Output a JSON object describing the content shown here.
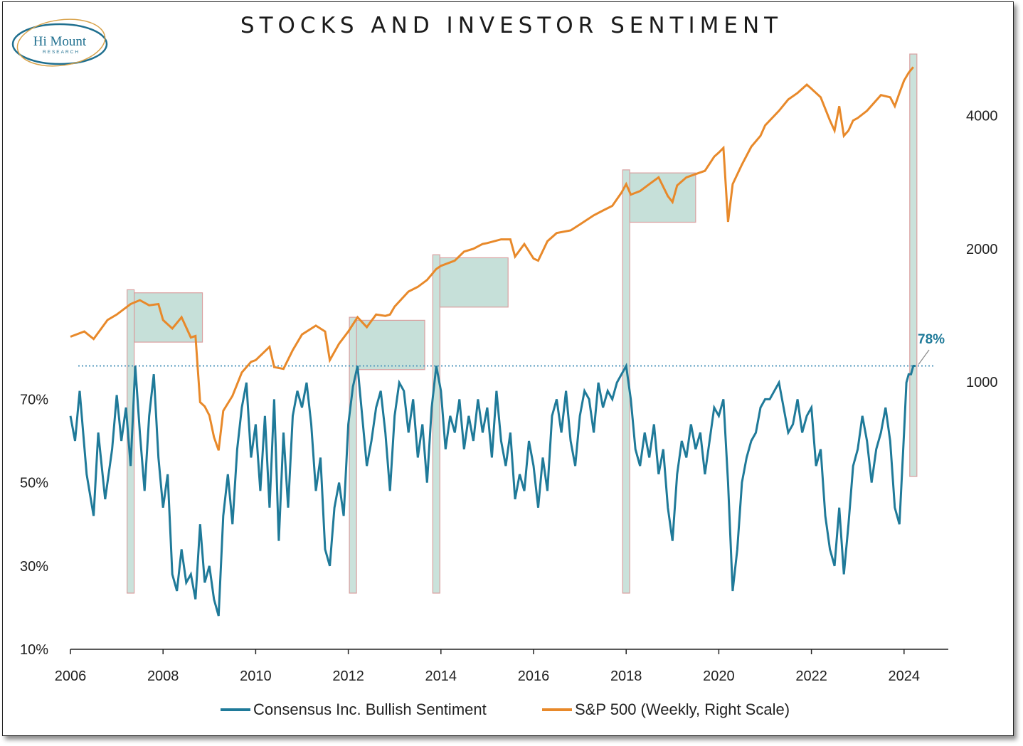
{
  "title": "STOCKS AND INVESTOR SENTIMENT",
  "logo": {
    "line1": "Hi Mount",
    "line2": "RESEARCH"
  },
  "colors": {
    "sentiment": "#1f7a99",
    "spx": "#e8892a",
    "box_fill": "#b3d6cc",
    "box_stroke": "#d9a0a0",
    "ref_line": "#5b9ec0"
  },
  "chart_data": {
    "type": "line",
    "title": "STOCKS AND INVESTOR SENTIMENT",
    "x_ticks": [
      "2006",
      "2008",
      "2010",
      "2012",
      "2014",
      "2016",
      "2018",
      "2020",
      "2022",
      "2024"
    ],
    "xlim": [
      2006,
      2024.9
    ],
    "left_axis": {
      "ticks": [
        "10%",
        "30%",
        "50%",
        "70%"
      ],
      "ylim": [
        10,
        100
      ]
    },
    "right_axis": {
      "ticks": [
        "1000",
        "2000",
        "4000"
      ],
      "scale": "log"
    },
    "reference_line": {
      "value": 78,
      "label": "78%"
    },
    "highlight_periods": [
      2007.3,
      2012.1,
      2013.9,
      2018.0,
      2024.2
    ],
    "series": [
      {
        "name": "Consensus Inc. Bullish Sentiment",
        "axis": "left",
        "points": [
          [
            2006.0,
            66
          ],
          [
            2006.1,
            60
          ],
          [
            2006.2,
            72
          ],
          [
            2006.35,
            52
          ],
          [
            2006.5,
            42
          ],
          [
            2006.6,
            62
          ],
          [
            2006.75,
            46
          ],
          [
            2006.9,
            58
          ],
          [
            2007.0,
            71
          ],
          [
            2007.1,
            60
          ],
          [
            2007.2,
            68
          ],
          [
            2007.3,
            54
          ],
          [
            2007.4,
            78
          ],
          [
            2007.5,
            62
          ],
          [
            2007.6,
            48
          ],
          [
            2007.7,
            66
          ],
          [
            2007.8,
            76
          ],
          [
            2007.9,
            56
          ],
          [
            2008.0,
            44
          ],
          [
            2008.1,
            52
          ],
          [
            2008.2,
            28
          ],
          [
            2008.3,
            24
          ],
          [
            2008.4,
            34
          ],
          [
            2008.5,
            26
          ],
          [
            2008.6,
            28
          ],
          [
            2008.7,
            22
          ],
          [
            2008.8,
            40
          ],
          [
            2008.9,
            26
          ],
          [
            2009.0,
            30
          ],
          [
            2009.1,
            22
          ],
          [
            2009.2,
            18
          ],
          [
            2009.3,
            42
          ],
          [
            2009.4,
            52
          ],
          [
            2009.5,
            40
          ],
          [
            2009.6,
            58
          ],
          [
            2009.7,
            68
          ],
          [
            2009.8,
            74
          ],
          [
            2009.9,
            56
          ],
          [
            2010.0,
            64
          ],
          [
            2010.1,
            48
          ],
          [
            2010.2,
            66
          ],
          [
            2010.3,
            44
          ],
          [
            2010.4,
            70
          ],
          [
            2010.5,
            36
          ],
          [
            2010.6,
            62
          ],
          [
            2010.7,
            44
          ],
          [
            2010.8,
            66
          ],
          [
            2010.9,
            72
          ],
          [
            2011.0,
            68
          ],
          [
            2011.1,
            74
          ],
          [
            2011.2,
            64
          ],
          [
            2011.3,
            48
          ],
          [
            2011.4,
            56
          ],
          [
            2011.5,
            34
          ],
          [
            2011.6,
            30
          ],
          [
            2011.7,
            44
          ],
          [
            2011.8,
            50
          ],
          [
            2011.9,
            42
          ],
          [
            2012.0,
            64
          ],
          [
            2012.1,
            73
          ],
          [
            2012.2,
            78
          ],
          [
            2012.3,
            66
          ],
          [
            2012.4,
            54
          ],
          [
            2012.5,
            60
          ],
          [
            2012.6,
            68
          ],
          [
            2012.7,
            72
          ],
          [
            2012.8,
            62
          ],
          [
            2012.9,
            48
          ],
          [
            2013.0,
            66
          ],
          [
            2013.1,
            74
          ],
          [
            2013.2,
            72
          ],
          [
            2013.3,
            62
          ],
          [
            2013.4,
            70
          ],
          [
            2013.5,
            56
          ],
          [
            2013.6,
            64
          ],
          [
            2013.7,
            50
          ],
          [
            2013.8,
            68
          ],
          [
            2013.9,
            78
          ],
          [
            2014.0,
            72
          ],
          [
            2014.1,
            58
          ],
          [
            2014.2,
            66
          ],
          [
            2014.3,
            62
          ],
          [
            2014.4,
            70
          ],
          [
            2014.5,
            58
          ],
          [
            2014.6,
            66
          ],
          [
            2014.7,
            60
          ],
          [
            2014.8,
            70
          ],
          [
            2014.9,
            62
          ],
          [
            2015.0,
            68
          ],
          [
            2015.1,
            56
          ],
          [
            2015.2,
            72
          ],
          [
            2015.3,
            60
          ],
          [
            2015.4,
            54
          ],
          [
            2015.5,
            62
          ],
          [
            2015.6,
            46
          ],
          [
            2015.7,
            52
          ],
          [
            2015.8,
            48
          ],
          [
            2015.9,
            60
          ],
          [
            2016.0,
            54
          ],
          [
            2016.1,
            44
          ],
          [
            2016.2,
            56
          ],
          [
            2016.3,
            48
          ],
          [
            2016.4,
            66
          ],
          [
            2016.5,
            70
          ],
          [
            2016.6,
            62
          ],
          [
            2016.7,
            72
          ],
          [
            2016.8,
            60
          ],
          [
            2016.9,
            54
          ],
          [
            2017.0,
            66
          ],
          [
            2017.1,
            72
          ],
          [
            2017.2,
            70
          ],
          [
            2017.3,
            62
          ],
          [
            2017.4,
            74
          ],
          [
            2017.5,
            68
          ],
          [
            2017.6,
            72
          ],
          [
            2017.7,
            70
          ],
          [
            2017.8,
            74
          ],
          [
            2017.9,
            76
          ],
          [
            2018.0,
            78
          ],
          [
            2018.1,
            70
          ],
          [
            2018.2,
            58
          ],
          [
            2018.3,
            54
          ],
          [
            2018.4,
            62
          ],
          [
            2018.5,
            56
          ],
          [
            2018.6,
            64
          ],
          [
            2018.7,
            52
          ],
          [
            2018.8,
            58
          ],
          [
            2018.9,
            44
          ],
          [
            2019.0,
            36
          ],
          [
            2019.1,
            52
          ],
          [
            2019.2,
            60
          ],
          [
            2019.3,
            56
          ],
          [
            2019.4,
            64
          ],
          [
            2019.5,
            58
          ],
          [
            2019.6,
            62
          ],
          [
            2019.7,
            52
          ],
          [
            2019.8,
            60
          ],
          [
            2019.9,
            68
          ],
          [
            2020.0,
            66
          ],
          [
            2020.1,
            70
          ],
          [
            2020.2,
            50
          ],
          [
            2020.3,
            24
          ],
          [
            2020.4,
            34
          ],
          [
            2020.5,
            50
          ],
          [
            2020.6,
            56
          ],
          [
            2020.7,
            60
          ],
          [
            2020.8,
            62
          ],
          [
            2020.9,
            68
          ],
          [
            2021.0,
            70
          ],
          [
            2021.1,
            70
          ],
          [
            2021.2,
            72
          ],
          [
            2021.3,
            74
          ],
          [
            2021.4,
            68
          ],
          [
            2021.5,
            62
          ],
          [
            2021.6,
            64
          ],
          [
            2021.7,
            70
          ],
          [
            2021.8,
            62
          ],
          [
            2021.9,
            66
          ],
          [
            2022.0,
            68
          ],
          [
            2022.1,
            54
          ],
          [
            2022.2,
            58
          ],
          [
            2022.3,
            42
          ],
          [
            2022.4,
            34
          ],
          [
            2022.5,
            30
          ],
          [
            2022.6,
            44
          ],
          [
            2022.7,
            28
          ],
          [
            2022.8,
            40
          ],
          [
            2022.9,
            54
          ],
          [
            2023.0,
            58
          ],
          [
            2023.1,
            66
          ],
          [
            2023.2,
            60
          ],
          [
            2023.3,
            50
          ],
          [
            2023.4,
            58
          ],
          [
            2023.5,
            62
          ],
          [
            2023.6,
            68
          ],
          [
            2023.7,
            60
          ],
          [
            2023.8,
            44
          ],
          [
            2023.9,
            40
          ],
          [
            2024.0,
            62
          ],
          [
            2024.05,
            74
          ],
          [
            2024.1,
            76
          ],
          [
            2024.15,
            76
          ],
          [
            2024.2,
            78
          ],
          [
            2024.25,
            78
          ]
        ]
      },
      {
        "name": "S&P 500 (Weekly, Right Scale)",
        "axis": "right",
        "points": [
          [
            2006.0,
            1265
          ],
          [
            2006.3,
            1300
          ],
          [
            2006.5,
            1250
          ],
          [
            2006.8,
            1380
          ],
          [
            2007.0,
            1420
          ],
          [
            2007.3,
            1500
          ],
          [
            2007.5,
            1530
          ],
          [
            2007.7,
            1490
          ],
          [
            2007.9,
            1500
          ],
          [
            2008.0,
            1380
          ],
          [
            2008.2,
            1320
          ],
          [
            2008.4,
            1400
          ],
          [
            2008.6,
            1260
          ],
          [
            2008.7,
            1270
          ],
          [
            2008.8,
            900
          ],
          [
            2008.9,
            880
          ],
          [
            2009.0,
            840
          ],
          [
            2009.1,
            750
          ],
          [
            2009.2,
            700
          ],
          [
            2009.3,
            860
          ],
          [
            2009.5,
            930
          ],
          [
            2009.7,
            1050
          ],
          [
            2009.9,
            1110
          ],
          [
            2010.0,
            1120
          ],
          [
            2010.3,
            1200
          ],
          [
            2010.4,
            1080
          ],
          [
            2010.6,
            1070
          ],
          [
            2010.8,
            1180
          ],
          [
            2011.0,
            1280
          ],
          [
            2011.3,
            1340
          ],
          [
            2011.5,
            1300
          ],
          [
            2011.6,
            1120
          ],
          [
            2011.8,
            1220
          ],
          [
            2012.0,
            1300
          ],
          [
            2012.2,
            1400
          ],
          [
            2012.4,
            1330
          ],
          [
            2012.6,
            1420
          ],
          [
            2012.8,
            1410
          ],
          [
            2012.9,
            1420
          ],
          [
            2013.0,
            1480
          ],
          [
            2013.3,
            1600
          ],
          [
            2013.5,
            1640
          ],
          [
            2013.7,
            1700
          ],
          [
            2013.9,
            1800
          ],
          [
            2014.0,
            1830
          ],
          [
            2014.3,
            1880
          ],
          [
            2014.5,
            1970
          ],
          [
            2014.7,
            2000
          ],
          [
            2014.9,
            2050
          ],
          [
            2015.0,
            2060
          ],
          [
            2015.3,
            2100
          ],
          [
            2015.5,
            2100
          ],
          [
            2015.6,
            1920
          ],
          [
            2015.8,
            2050
          ],
          [
            2016.0,
            1900
          ],
          [
            2016.1,
            1880
          ],
          [
            2016.3,
            2080
          ],
          [
            2016.5,
            2170
          ],
          [
            2016.8,
            2200
          ],
          [
            2017.0,
            2270
          ],
          [
            2017.3,
            2380
          ],
          [
            2017.5,
            2440
          ],
          [
            2017.7,
            2500
          ],
          [
            2017.9,
            2680
          ],
          [
            2018.0,
            2800
          ],
          [
            2018.1,
            2650
          ],
          [
            2018.3,
            2700
          ],
          [
            2018.5,
            2800
          ],
          [
            2018.7,
            2900
          ],
          [
            2018.9,
            2630
          ],
          [
            2019.0,
            2550
          ],
          [
            2019.1,
            2780
          ],
          [
            2019.3,
            2900
          ],
          [
            2019.5,
            2950
          ],
          [
            2019.7,
            3000
          ],
          [
            2019.9,
            3230
          ],
          [
            2020.0,
            3300
          ],
          [
            2020.1,
            3380
          ],
          [
            2020.2,
            2300
          ],
          [
            2020.3,
            2800
          ],
          [
            2020.5,
            3100
          ],
          [
            2020.7,
            3400
          ],
          [
            2020.9,
            3600
          ],
          [
            2021.0,
            3800
          ],
          [
            2021.3,
            4100
          ],
          [
            2021.5,
            4350
          ],
          [
            2021.7,
            4500
          ],
          [
            2021.9,
            4700
          ],
          [
            2022.0,
            4600
          ],
          [
            2022.2,
            4400
          ],
          [
            2022.4,
            3900
          ],
          [
            2022.5,
            3700
          ],
          [
            2022.6,
            4200
          ],
          [
            2022.7,
            3600
          ],
          [
            2022.8,
            3700
          ],
          [
            2022.9,
            3900
          ],
          [
            2023.0,
            3950
          ],
          [
            2023.2,
            4100
          ],
          [
            2023.5,
            4450
          ],
          [
            2023.7,
            4400
          ],
          [
            2023.8,
            4200
          ],
          [
            2023.9,
            4500
          ],
          [
            2024.0,
            4800
          ],
          [
            2024.1,
            5000
          ],
          [
            2024.2,
            5150
          ]
        ]
      }
    ]
  },
  "legend": {
    "sentiment_label": "Consensus Inc. Bullish Sentiment",
    "spx_label": "S&P 500 (Weekly, Right Scale)"
  }
}
